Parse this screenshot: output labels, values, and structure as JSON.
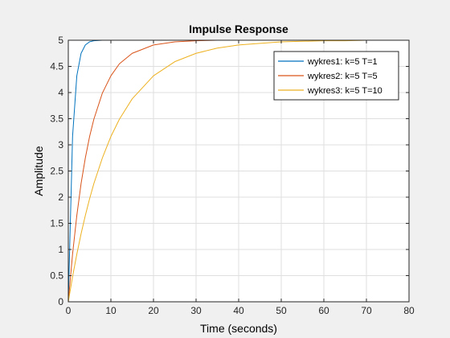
{
  "chart_data": {
    "type": "line",
    "title": "Impulse Response",
    "xlabel": "Time (seconds)",
    "ylabel": "Amplitude",
    "xlim": [
      0,
      80
    ],
    "ylim": [
      0,
      5
    ],
    "xticks": [
      0,
      10,
      20,
      30,
      40,
      50,
      60,
      70,
      80
    ],
    "yticks": [
      0,
      0.5,
      1,
      1.5,
      2,
      2.5,
      3,
      3.5,
      4,
      4.5,
      5
    ],
    "grid": true,
    "legend_position": "top-right",
    "steady_state_value": 5,
    "x": [
      0,
      1,
      2,
      3,
      4,
      5,
      6,
      8,
      10,
      12,
      15,
      20,
      25,
      30,
      35,
      40,
      45,
      50,
      55,
      60,
      65,
      70,
      75,
      80
    ],
    "series": [
      {
        "name": "wykres1: k=5 T=1",
        "color": "#0072bd",
        "values": [
          0,
          3.16,
          4.32,
          4.75,
          4.91,
          4.97,
          4.99,
          5.0,
          5.0,
          5.0,
          5.0,
          5.0,
          5.0,
          5.0,
          5.0,
          5.0,
          5.0,
          5.0,
          5.0,
          5.0,
          5.0,
          5.0,
          5.0,
          5.0
        ]
      },
      {
        "name": "wykres2: k=5 T=5",
        "color": "#d95319",
        "values": [
          0,
          0.91,
          1.65,
          2.26,
          2.75,
          3.16,
          3.49,
          3.99,
          4.32,
          4.55,
          4.75,
          4.91,
          4.97,
          4.99,
          5.0,
          5.0,
          5.0,
          5.0,
          5.0,
          5.0,
          5.0,
          5.0,
          5.0,
          5.0
        ]
      },
      {
        "name": "wykres3: k=5 T=10",
        "color": "#edb120",
        "values": [
          0,
          0.48,
          0.91,
          1.3,
          1.65,
          1.97,
          2.26,
          2.75,
          3.16,
          3.49,
          3.88,
          4.32,
          4.59,
          4.75,
          4.85,
          4.91,
          4.94,
          4.97,
          4.98,
          4.99,
          4.99,
          5.0,
          5.0,
          5.0
        ]
      }
    ]
  }
}
